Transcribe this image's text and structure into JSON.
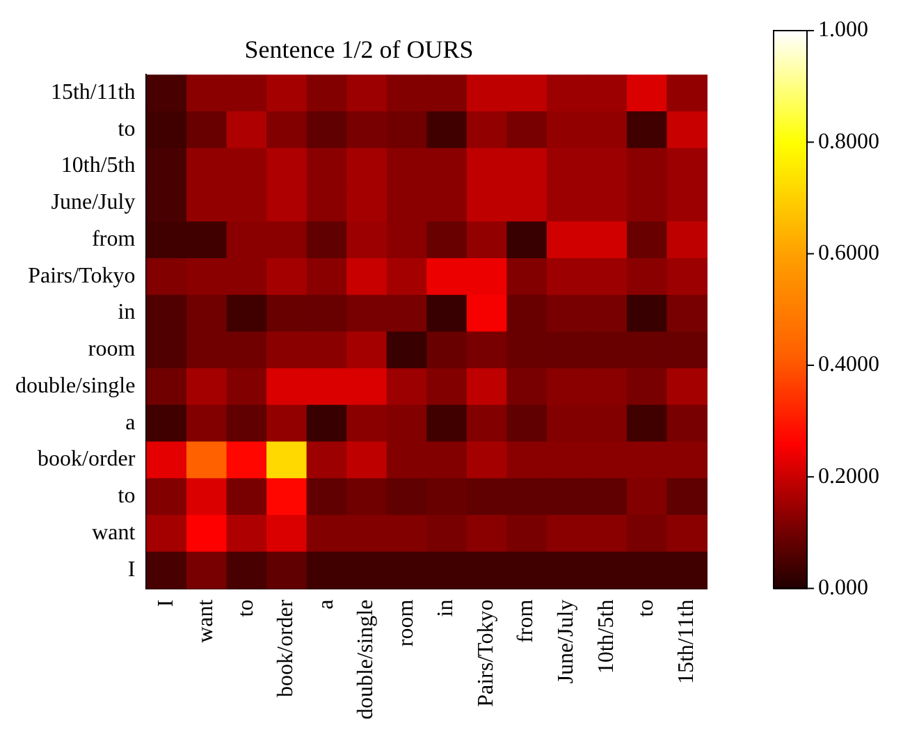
{
  "chart_data": {
    "type": "heatmap",
    "title": "Sentence 1/2 of OURS",
    "categories": [
      "I",
      "want",
      "to",
      "book/order",
      "a",
      "double/single",
      "room",
      "in",
      "Pairs/Tokyo",
      "from",
      "June/July",
      "10th/5th",
      "to",
      "15th/11th"
    ],
    "y_categories": [
      "15th/11th",
      "to",
      "10th/5th",
      "June/July",
      "from",
      "Pairs/Tokyo",
      "in",
      "room",
      "double/single",
      "a",
      "book/order",
      "to",
      "want",
      "I"
    ],
    "cells": [
      [
        0.05,
        0.13,
        0.13,
        0.16,
        0.12,
        0.15,
        0.12,
        0.12,
        0.19,
        0.19,
        0.15,
        0.15,
        0.22,
        0.14
      ],
      [
        0.04,
        0.09,
        0.17,
        0.12,
        0.08,
        0.11,
        0.1,
        0.04,
        0.14,
        0.11,
        0.14,
        0.14,
        0.04,
        0.2
      ],
      [
        0.05,
        0.14,
        0.14,
        0.17,
        0.13,
        0.16,
        0.13,
        0.13,
        0.19,
        0.19,
        0.15,
        0.15,
        0.13,
        0.15
      ],
      [
        0.05,
        0.14,
        0.14,
        0.17,
        0.13,
        0.16,
        0.13,
        0.13,
        0.19,
        0.19,
        0.15,
        0.15,
        0.13,
        0.15
      ],
      [
        0.04,
        0.04,
        0.13,
        0.13,
        0.08,
        0.15,
        0.13,
        0.09,
        0.14,
        0.03,
        0.21,
        0.21,
        0.09,
        0.19
      ],
      [
        0.12,
        0.13,
        0.13,
        0.16,
        0.13,
        0.2,
        0.16,
        0.24,
        0.24,
        0.12,
        0.15,
        0.15,
        0.13,
        0.15
      ],
      [
        0.06,
        0.1,
        0.04,
        0.09,
        0.09,
        0.11,
        0.11,
        0.03,
        0.25,
        0.09,
        0.11,
        0.11,
        0.03,
        0.11
      ],
      [
        0.06,
        0.1,
        0.1,
        0.13,
        0.13,
        0.16,
        0.03,
        0.09,
        0.11,
        0.09,
        0.09,
        0.09,
        0.09,
        0.09
      ],
      [
        0.1,
        0.16,
        0.12,
        0.22,
        0.22,
        0.22,
        0.15,
        0.12,
        0.19,
        0.11,
        0.13,
        0.13,
        0.11,
        0.16
      ],
      [
        0.04,
        0.12,
        0.08,
        0.14,
        0.03,
        0.13,
        0.12,
        0.04,
        0.12,
        0.08,
        0.12,
        0.12,
        0.04,
        0.11
      ],
      [
        0.23,
        0.42,
        0.27,
        0.72,
        0.15,
        0.19,
        0.12,
        0.12,
        0.16,
        0.13,
        0.13,
        0.13,
        0.13,
        0.13
      ],
      [
        0.12,
        0.22,
        0.11,
        0.27,
        0.08,
        0.1,
        0.08,
        0.09,
        0.08,
        0.08,
        0.08,
        0.08,
        0.12,
        0.08
      ],
      [
        0.16,
        0.26,
        0.17,
        0.22,
        0.12,
        0.12,
        0.12,
        0.11,
        0.13,
        0.11,
        0.13,
        0.13,
        0.11,
        0.13
      ],
      [
        0.05,
        0.11,
        0.05,
        0.08,
        0.04,
        0.04,
        0.04,
        0.04,
        0.04,
        0.04,
        0.04,
        0.04,
        0.04,
        0.04
      ]
    ],
    "clim": [
      0,
      1
    ],
    "cticks": [
      {
        "value": 0,
        "label": "0.000"
      },
      {
        "value": 0.2,
        "label": "0.2000"
      },
      {
        "value": 0.4,
        "label": "0.4000"
      },
      {
        "value": 0.6,
        "label": "0.6000"
      },
      {
        "value": 0.8,
        "label": "0.8000"
      },
      {
        "value": 1,
        "label": "1.000"
      }
    ]
  }
}
